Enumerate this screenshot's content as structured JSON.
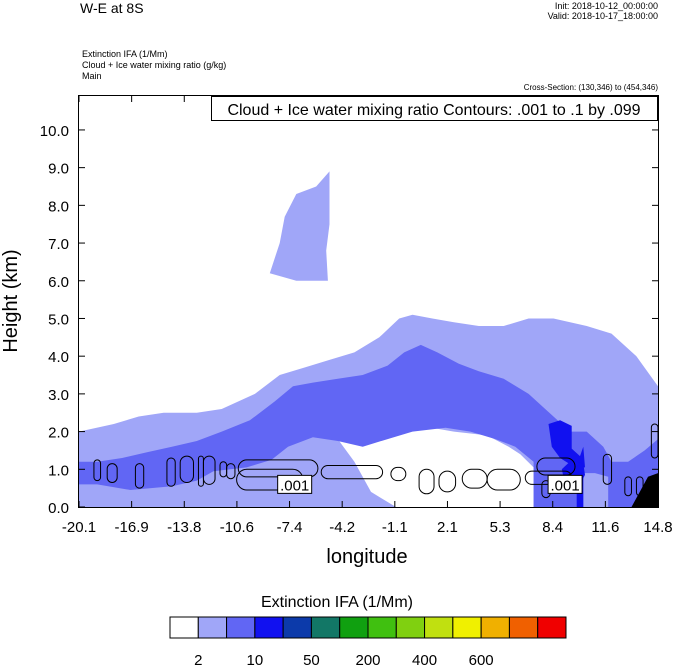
{
  "header": {
    "title": "W-E at 8S",
    "init": "Init: 2018-10-12_00:00:00",
    "valid": "Valid: 2018-10-17_18:00:00",
    "field1": "Extinction IFA   (1/Mm)",
    "field2": "Cloud + Ice water mixing ratio   (g/kg)",
    "field3": "Main",
    "cross_section": "Cross-Section: (130,346) to (454,346)"
  },
  "chart_data": {
    "type": "heatmap",
    "title": "Cloud + Ice water mixing ratio Contours: .001 to .1 by .099",
    "xlabel": "longitude",
    "ylabel": "Height (km)",
    "xlim": [
      -20.1,
      14.8
    ],
    "ylim": [
      0.0,
      10.9
    ],
    "x_ticks": [
      "-20.1",
      "-16.9",
      "-13.8",
      "-10.6",
      "-7.4",
      "-4.2",
      "-1.1",
      "2.1",
      "5.3",
      "8.4",
      "11.6",
      "14.8"
    ],
    "y_ticks": [
      "0.0",
      "1.0",
      "2.0",
      "3.0",
      "4.0",
      "5.0",
      "6.0",
      "7.0",
      "8.0",
      "9.0",
      "10.0"
    ],
    "contour_labels": [
      {
        "text": ".001",
        "x": -7.1,
        "y": 0.6
      },
      {
        "text": ".001",
        "x": 9.2,
        "y": 0.6
      }
    ],
    "colorbar": {
      "title": "Extinction IFA  (1/Mm)",
      "colors": [
        "#ffffff",
        "#a0a6f8",
        "#6166f4",
        "#1111f0",
        "#0c3aaa",
        "#127766",
        "#10a010",
        "#40c010",
        "#80d010",
        "#c0e010",
        "#f0f000",
        "#f0b000",
        "#f06000",
        "#f00000"
      ],
      "labels": [
        "2",
        "10",
        "50",
        "200",
        "400",
        "600"
      ]
    },
    "regions": {
      "light": [
        [
          -20.1,
          0
        ],
        [
          -20.1,
          2.0
        ],
        [
          -18,
          2.2
        ],
        [
          -16.5,
          2.4
        ],
        [
          -15,
          2.5
        ],
        [
          -13,
          2.5
        ],
        [
          -11.5,
          2.6
        ],
        [
          -9.5,
          3.0
        ],
        [
          -8,
          3.5
        ],
        [
          -6.5,
          3.7
        ],
        [
          -5,
          3.9
        ],
        [
          -3.5,
          4.1
        ],
        [
          -2,
          4.5
        ],
        [
          -0.8,
          5.0
        ],
        [
          0,
          5.1
        ],
        [
          1.2,
          5.0
        ],
        [
          2.5,
          4.9
        ],
        [
          4,
          4.8
        ],
        [
          5.5,
          4.8
        ],
        [
          7,
          5.0
        ],
        [
          8.5,
          5.0
        ],
        [
          10.5,
          4.8
        ],
        [
          12,
          4.6
        ],
        [
          13.5,
          4.0
        ],
        [
          14.8,
          3.2
        ],
        [
          14.8,
          0
        ]
      ],
      "hole": [
        [
          -4.5,
          1.8
        ],
        [
          -3,
          1.65
        ],
        [
          -1.5,
          1.9
        ],
        [
          0.5,
          2.15
        ],
        [
          2.5,
          2.0
        ],
        [
          4.5,
          1.9
        ],
        [
          5.8,
          1.6
        ],
        [
          6.5,
          1.4
        ],
        [
          7.3,
          1.05
        ],
        [
          7.3,
          0
        ],
        [
          -1,
          0
        ],
        [
          -2.5,
          0.4
        ],
        [
          -3.5,
          1.2
        ]
      ],
      "light_top": [
        [
          -7.7,
          7.7
        ],
        [
          -7.0,
          8.3
        ],
        [
          -5.8,
          8.5
        ],
        [
          -5.0,
          8.9
        ],
        [
          -5.0,
          7.5
        ],
        [
          -5.2,
          6.8
        ],
        [
          -5.1,
          6.0
        ],
        [
          -7.0,
          6.0
        ],
        [
          -8.6,
          6.2
        ],
        [
          -8.0,
          7.0
        ]
      ],
      "med": [
        [
          -20.1,
          0
        ],
        [
          -20.1,
          1.2
        ],
        [
          -19,
          1.2
        ],
        [
          -17.5,
          1.3
        ],
        [
          -16,
          1.45
        ],
        [
          -14.5,
          1.6
        ],
        [
          -13,
          1.75
        ],
        [
          -11.5,
          2.0
        ],
        [
          -9.8,
          2.3
        ],
        [
          -8.3,
          2.8
        ],
        [
          -7.2,
          3.2
        ],
        [
          -6,
          3.3
        ],
        [
          -4.5,
          3.4
        ],
        [
          -3,
          3.5
        ],
        [
          -1.5,
          3.75
        ],
        [
          -0.5,
          4.1
        ],
        [
          0.5,
          4.3
        ],
        [
          1.5,
          4.1
        ],
        [
          2.8,
          3.8
        ],
        [
          4,
          3.6
        ],
        [
          5.5,
          3.4
        ],
        [
          7,
          3.0
        ],
        [
          8,
          2.6
        ],
        [
          9.5,
          2.0
        ],
        [
          10.5,
          2.0
        ],
        [
          11.5,
          1.6
        ],
        [
          12,
          1.2
        ],
        [
          13,
          1.2
        ],
        [
          14,
          1.5
        ],
        [
          14.8,
          1.8
        ],
        [
          14.8,
          0
        ],
        [
          11.8,
          0
        ],
        [
          11.8,
          0.8
        ],
        [
          11,
          0.9
        ],
        [
          10.3,
          0.9
        ],
        [
          10.3,
          0
        ],
        [
          7.3,
          0
        ],
        [
          7.3,
          1.2
        ],
        [
          6.2,
          1.6
        ],
        [
          5,
          1.8
        ],
        [
          3.5,
          2.0
        ],
        [
          2,
          2.1
        ],
        [
          0,
          2.0
        ],
        [
          -1.5,
          1.8
        ],
        [
          -3,
          1.6
        ],
        [
          -4.5,
          1.75
        ],
        [
          -6,
          1.85
        ],
        [
          -7.5,
          1.6
        ],
        [
          -8.5,
          1.25
        ],
        [
          -10,
          1.05
        ],
        [
          -12,
          0.95
        ],
        [
          -13,
          0.7
        ],
        [
          -14.5,
          0.55
        ],
        [
          -17,
          0.45
        ],
        [
          -19,
          0.6
        ],
        [
          -20.1,
          0.6
        ]
      ],
      "blue": [
        [
          [
            8.2,
            2.2
          ],
          [
            8.9,
            2.3
          ],
          [
            9.6,
            2.15
          ],
          [
            9.6,
            1.55
          ],
          [
            10.1,
            1.35
          ],
          [
            10.3,
            1.6
          ],
          [
            10.4,
            1.05
          ],
          [
            9.8,
            1.05
          ],
          [
            8.9,
            1.3
          ],
          [
            8.4,
            1.6
          ]
        ],
        [
          [
            9.2,
            0.6
          ],
          [
            10.1,
            0.6
          ],
          [
            10.4,
            0.85
          ],
          [
            10.3,
            1.15
          ],
          [
            9.6,
            1.25
          ],
          [
            9.0,
            1.0
          ]
        ],
        [
          [
            9.9,
            -0.05
          ],
          [
            10.3,
            -0.05
          ],
          [
            10.3,
            0.9
          ],
          [
            9.9,
            0.9
          ]
        ]
      ],
      "black": [
        [
          [
            13.2,
            0
          ],
          [
            14.8,
            0
          ],
          [
            14.8,
            0.9
          ],
          [
            14.2,
            0.8
          ]
        ]
      ]
    },
    "contours": [
      {
        "x": [
          -19.2,
          -18.8
        ],
        "y": [
          0.7,
          1.25
        ]
      },
      {
        "x": [
          -18.4,
          -17.8
        ],
        "y": [
          0.65,
          1.15
        ]
      },
      {
        "x": [
          -16.7,
          -16.2
        ],
        "y": [
          0.5,
          1.15
        ]
      },
      {
        "x": [
          -14.8,
          -14.3
        ],
        "y": [
          0.55,
          1.3
        ]
      },
      {
        "x": [
          -14.0,
          -13.2
        ],
        "y": [
          0.65,
          1.35
        ]
      },
      {
        "x": [
          -12.9,
          -12.6
        ],
        "y": [
          0.55,
          1.35
        ]
      },
      {
        "x": [
          -12.6,
          -11.9
        ],
        "y": [
          0.6,
          1.35
        ]
      },
      {
        "x": [
          -11.6,
          -11.2
        ],
        "y": [
          0.8,
          1.2
        ]
      },
      {
        "x": [
          -11.2,
          -10.7
        ],
        "y": [
          0.75,
          1.15
        ]
      },
      {
        "x": [
          -10.5,
          -5.7
        ],
        "y": [
          0.8,
          1.25
        ]
      },
      {
        "x": [
          -10.6,
          -6.6
        ],
        "y": [
          0.45,
          1.0
        ]
      },
      {
        "x": [
          -5.5,
          -1.8
        ],
        "y": [
          0.75,
          1.1
        ]
      },
      {
        "x": [
          -1.3,
          -0.4
        ],
        "y": [
          0.7,
          1.05
        ]
      },
      {
        "x": [
          0.4,
          1.3
        ],
        "y": [
          0.35,
          1.0
        ]
      },
      {
        "x": [
          1.6,
          2.6
        ],
        "y": [
          0.4,
          0.95
        ]
      },
      {
        "x": [
          3.0,
          4.5
        ],
        "y": [
          0.5,
          1.0
        ]
      },
      {
        "x": [
          4.5,
          6.5
        ],
        "y": [
          0.45,
          1.0
        ]
      },
      {
        "x": [
          6.8,
          9.6
        ],
        "y": [
          0.6,
          0.95
        ]
      },
      {
        "x": [
          7.5,
          9.8
        ],
        "y": [
          0.85,
          1.3
        ]
      },
      {
        "x": [
          7.8,
          8.3
        ],
        "y": [
          0.25,
          0.7
        ]
      },
      {
        "x": [
          11.5,
          12.0
        ],
        "y": [
          0.6,
          1.4
        ]
      },
      {
        "x": [
          12.8,
          13.2
        ],
        "y": [
          0.3,
          0.8
        ]
      },
      {
        "x": [
          13.5,
          13.9
        ],
        "y": [
          0.3,
          0.8
        ]
      },
      {
        "x": [
          14.4,
          14.8
        ],
        "y": [
          1.3,
          2.2
        ]
      }
    ]
  }
}
